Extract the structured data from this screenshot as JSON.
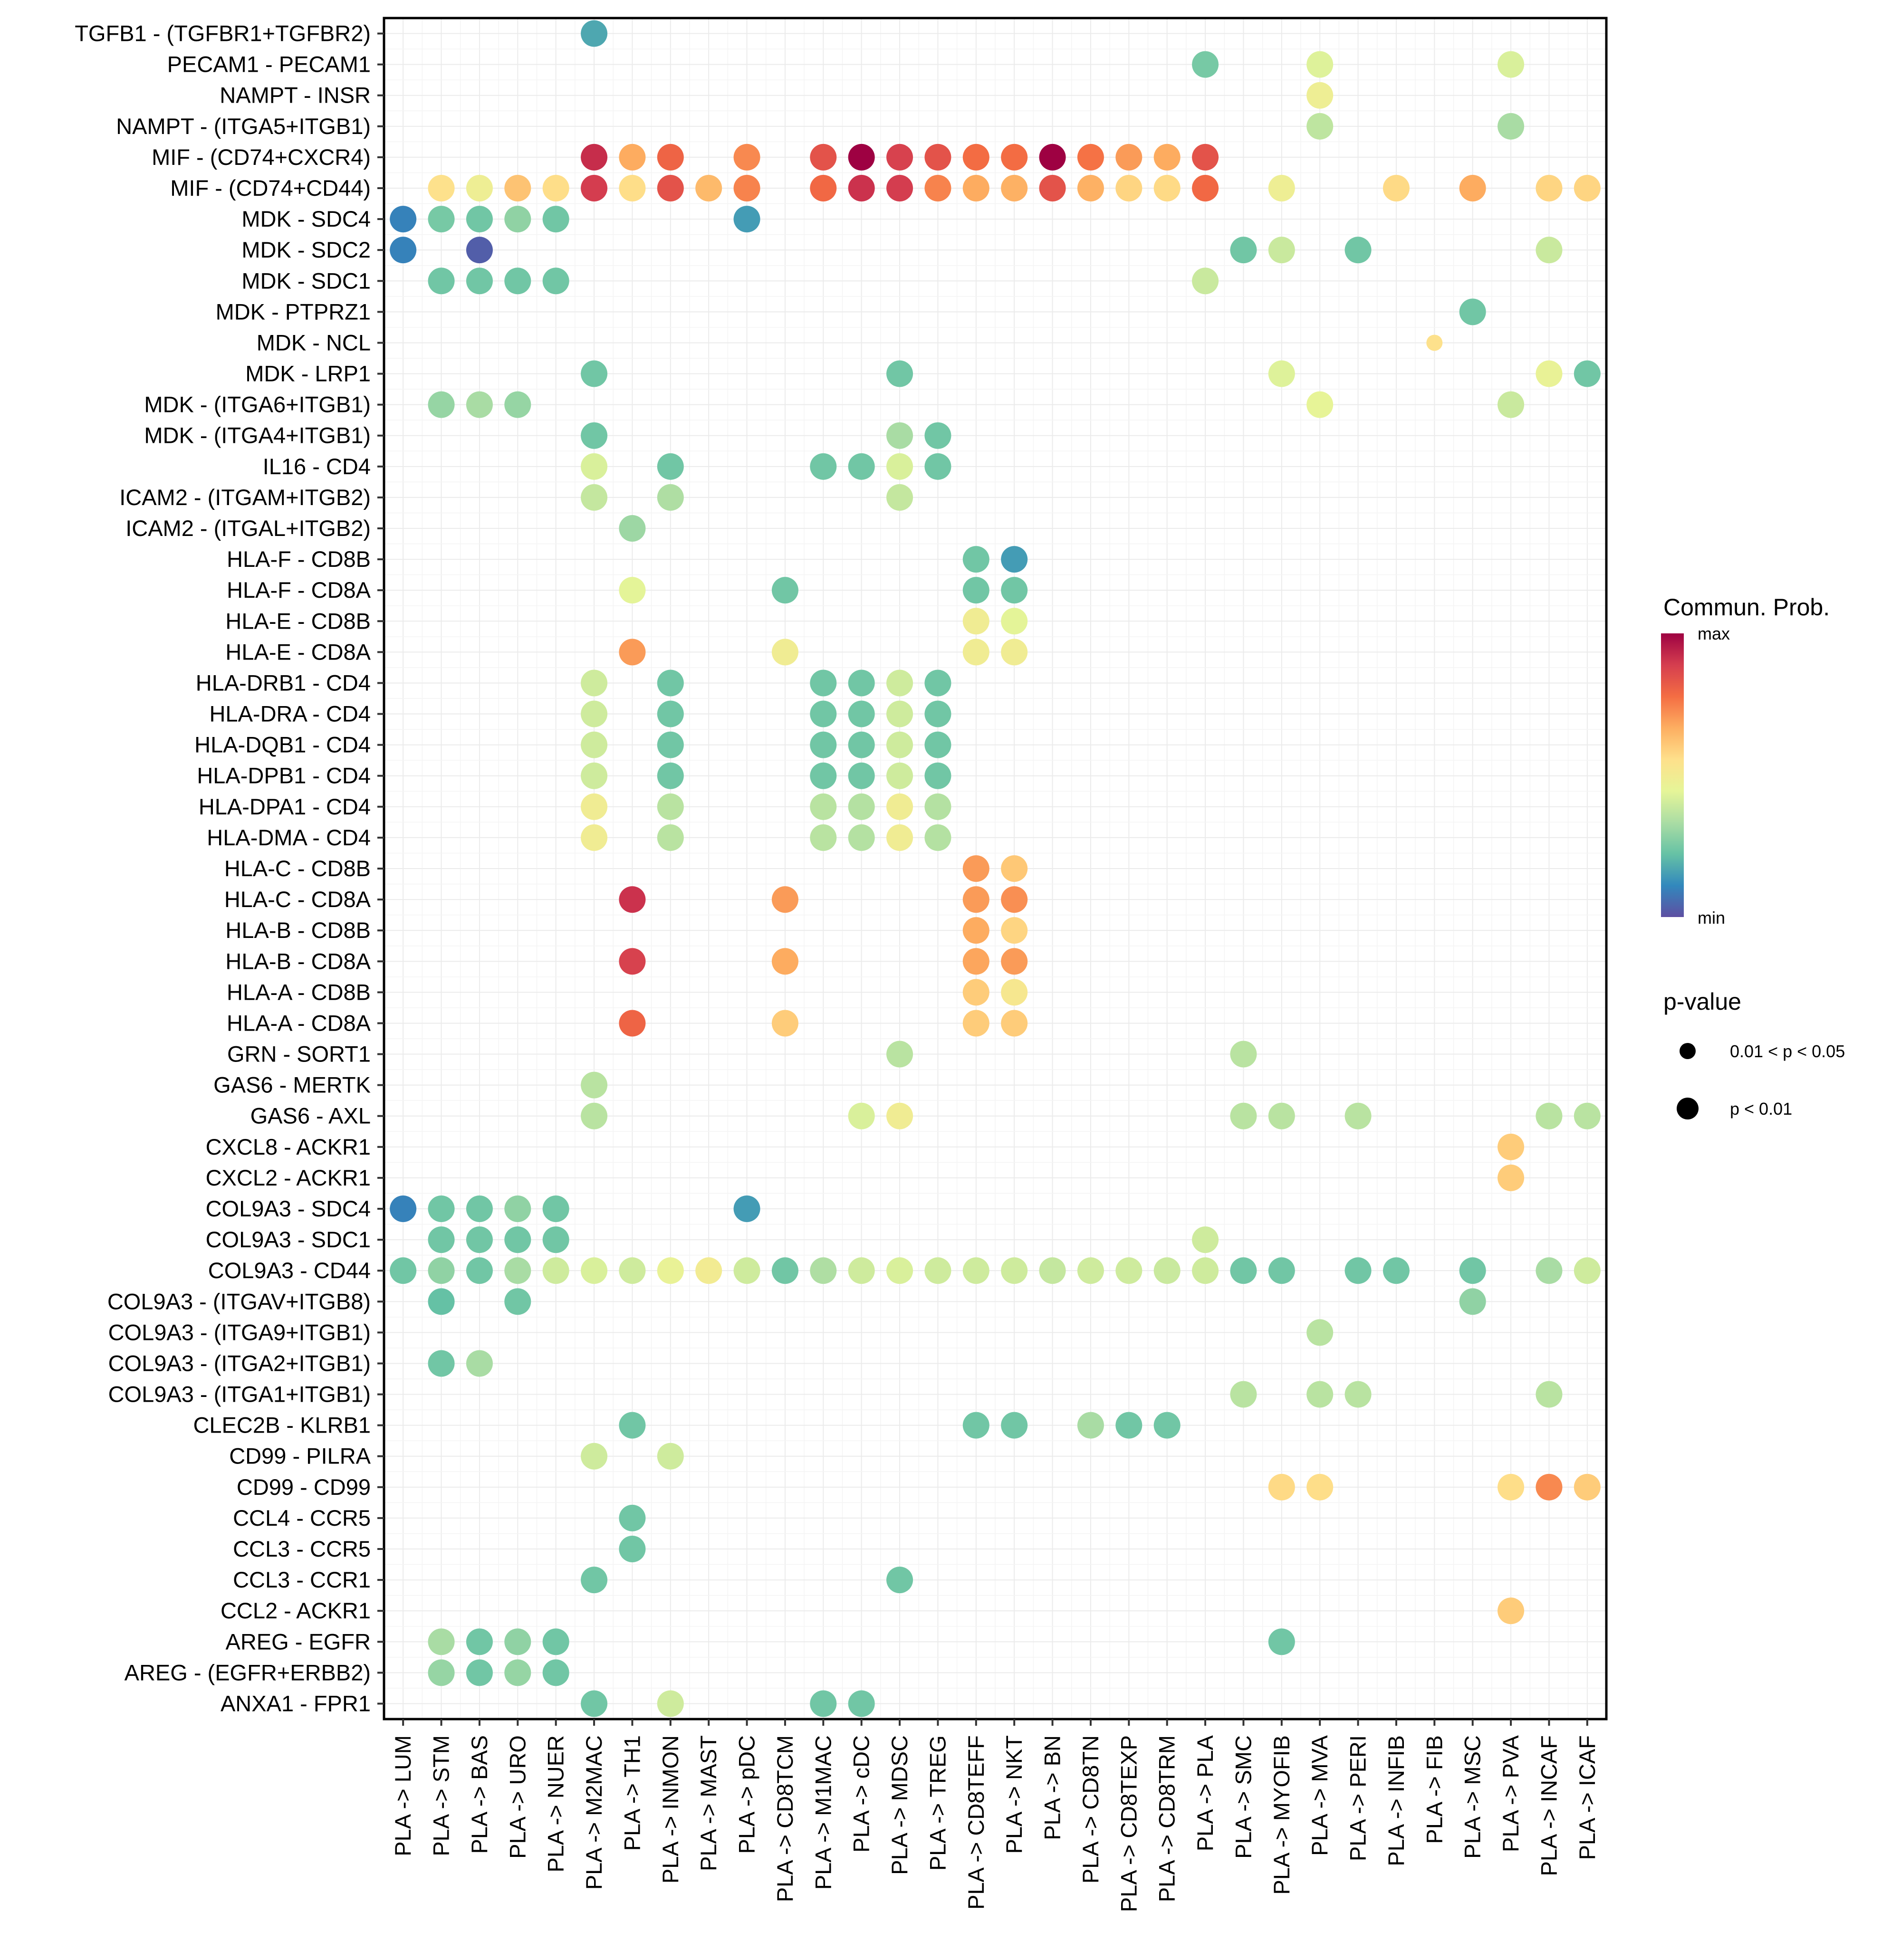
{
  "chart_data": {
    "type": "scatter",
    "subtype": "dotplot",
    "title": "",
    "xlabel": "",
    "ylabel": "",
    "grid": true,
    "legend_placement": "right",
    "x_categories": [
      "PLA -> LUM",
      "PLA -> STM",
      "PLA -> BAS",
      "PLA -> URO",
      "PLA -> NUER",
      "PLA -> M2MAC",
      "PLA -> TH1",
      "PLA -> INMON",
      "PLA -> MAST",
      "PLA -> pDC",
      "PLA -> CD8TCM",
      "PLA -> M1MAC",
      "PLA -> cDC",
      "PLA -> MDSC",
      "PLA -> TREG",
      "PLA -> CD8TEFF",
      "PLA -> NKT",
      "PLA -> BN",
      "PLA -> CD8TN",
      "PLA -> CD8TEXP",
      "PLA -> CD8TRM",
      "PLA -> PLA",
      "PLA -> SMC",
      "PLA -> MYOFIB",
      "PLA -> MVA",
      "PLA -> PERI",
      "PLA -> INFIB",
      "PLA -> FIB",
      "PLA -> MSC",
      "PLA -> PVA",
      "PLA -> INCAF",
      "PLA -> ICAF"
    ],
    "y_categories": [
      "TGFB1 - (TGFBR1+TGFBR2)",
      "PECAM1 - PECAM1",
      "NAMPT - INSR",
      "NAMPT - (ITGA5+ITGB1)",
      "MIF - (CD74+CXCR4)",
      "MIF - (CD74+CD44)",
      "MDK - SDC4",
      "MDK - SDC2",
      "MDK - SDC1",
      "MDK - PTPRZ1",
      "MDK - NCL",
      "MDK - LRP1",
      "MDK - (ITGA6+ITGB1)",
      "MDK - (ITGA4+ITGB1)",
      "IL16 - CD4",
      "ICAM2 - (ITGAM+ITGB2)",
      "ICAM2 - (ITGAL+ITGB2)",
      "HLA-F - CD8B",
      "HLA-F - CD8A",
      "HLA-E - CD8B",
      "HLA-E - CD8A",
      "HLA-DRB1 - CD4",
      "HLA-DRA - CD4",
      "HLA-DQB1 - CD4",
      "HLA-DPB1 - CD4",
      "HLA-DPA1 - CD4",
      "HLA-DMA - CD4",
      "HLA-C - CD8B",
      "HLA-C - CD8A",
      "HLA-B - CD8B",
      "HLA-B - CD8A",
      "HLA-A - CD8B",
      "HLA-A - CD8A",
      "GRN - SORT1",
      "GAS6 - MERTK",
      "GAS6 - AXL",
      "CXCL8 - ACKR1",
      "CXCL2 - ACKR1",
      "COL9A3 - SDC4",
      "COL9A3 - SDC1",
      "COL9A3 - CD44",
      "COL9A3 - (ITGAV+ITGB8)",
      "COL9A3 - (ITGA9+ITGB1)",
      "COL9A3 - (ITGA2+ITGB1)",
      "COL9A3 - (ITGA1+ITGB1)",
      "CLEC2B - KLRB1",
      "CD99 - PILRA",
      "CD99 - CD99",
      "CCL4 - CCR5",
      "CCL3 - CCR5",
      "CCL3 - CCR1",
      "CCL2 - ACKR1",
      "AREG - EGFR",
      "AREG - (EGFR+ERBB2)",
      "ANXA1 - FPR1"
    ],
    "point_fields": [
      "row",
      "col",
      "commun_prob_scaled",
      "pvalue_class"
    ],
    "pvalue_classes": [
      "0.01 < p < 0.05",
      "p < 0.01"
    ],
    "points": [
      [
        0,
        5,
        0.17,
        1
      ],
      [
        1,
        21,
        0.25,
        1
      ],
      [
        1,
        24,
        0.43,
        1
      ],
      [
        1,
        29,
        0.42,
        1
      ],
      [
        2,
        24,
        0.48,
        1
      ],
      [
        3,
        24,
        0.37,
        1
      ],
      [
        3,
        29,
        0.33,
        1
      ],
      [
        4,
        5,
        0.92,
        1
      ],
      [
        4,
        6,
        0.67,
        1
      ],
      [
        4,
        7,
        0.8,
        1
      ],
      [
        4,
        9,
        0.73,
        1
      ],
      [
        4,
        11,
        0.84,
        1
      ],
      [
        4,
        12,
        1.0,
        1
      ],
      [
        4,
        13,
        0.88,
        1
      ],
      [
        4,
        14,
        0.84,
        1
      ],
      [
        4,
        15,
        0.78,
        1
      ],
      [
        4,
        16,
        0.78,
        1
      ],
      [
        4,
        17,
        1.0,
        1
      ],
      [
        4,
        18,
        0.77,
        1
      ],
      [
        4,
        19,
        0.7,
        1
      ],
      [
        4,
        20,
        0.67,
        1
      ],
      [
        4,
        21,
        0.84,
        1
      ],
      [
        5,
        1,
        0.55,
        1
      ],
      [
        5,
        2,
        0.48,
        1
      ],
      [
        5,
        3,
        0.62,
        1
      ],
      [
        5,
        4,
        0.56,
        1
      ],
      [
        5,
        5,
        0.89,
        1
      ],
      [
        5,
        6,
        0.56,
        1
      ],
      [
        5,
        7,
        0.84,
        1
      ],
      [
        5,
        8,
        0.64,
        1
      ],
      [
        5,
        9,
        0.74,
        1
      ],
      [
        5,
        11,
        0.79,
        1
      ],
      [
        5,
        12,
        0.91,
        1
      ],
      [
        5,
        13,
        0.89,
        1
      ],
      [
        5,
        14,
        0.74,
        1
      ],
      [
        5,
        15,
        0.67,
        1
      ],
      [
        5,
        16,
        0.66,
        1
      ],
      [
        5,
        17,
        0.84,
        1
      ],
      [
        5,
        18,
        0.66,
        1
      ],
      [
        5,
        19,
        0.58,
        1
      ],
      [
        5,
        20,
        0.57,
        1
      ],
      [
        5,
        21,
        0.79,
        1
      ],
      [
        5,
        23,
        0.48,
        1
      ],
      [
        5,
        26,
        0.57,
        1
      ],
      [
        5,
        28,
        0.67,
        1
      ],
      [
        5,
        30,
        0.58,
        1
      ],
      [
        5,
        31,
        0.58,
        1
      ],
      [
        6,
        0,
        0.1,
        1
      ],
      [
        6,
        1,
        0.25,
        1
      ],
      [
        6,
        2,
        0.24,
        1
      ],
      [
        6,
        3,
        0.29,
        1
      ],
      [
        6,
        4,
        0.24,
        1
      ],
      [
        6,
        9,
        0.15,
        1
      ],
      [
        7,
        0,
        0.1,
        1
      ],
      [
        7,
        2,
        0.03,
        1
      ],
      [
        7,
        22,
        0.24,
        1
      ],
      [
        7,
        23,
        0.39,
        1
      ],
      [
        7,
        25,
        0.24,
        1
      ],
      [
        7,
        30,
        0.39,
        1
      ],
      [
        8,
        1,
        0.24,
        1
      ],
      [
        8,
        2,
        0.24,
        1
      ],
      [
        8,
        3,
        0.24,
        1
      ],
      [
        8,
        4,
        0.24,
        1
      ],
      [
        8,
        21,
        0.39,
        1
      ],
      [
        9,
        28,
        0.24,
        1
      ],
      [
        10,
        27,
        0.55,
        0
      ],
      [
        11,
        5,
        0.24,
        1
      ],
      [
        11,
        13,
        0.24,
        1
      ],
      [
        11,
        23,
        0.43,
        1
      ],
      [
        11,
        30,
        0.46,
        1
      ],
      [
        11,
        31,
        0.24,
        1
      ],
      [
        12,
        1,
        0.3,
        1
      ],
      [
        12,
        2,
        0.33,
        1
      ],
      [
        12,
        3,
        0.3,
        1
      ],
      [
        12,
        24,
        0.45,
        1
      ],
      [
        12,
        29,
        0.39,
        1
      ],
      [
        13,
        5,
        0.24,
        1
      ],
      [
        13,
        13,
        0.33,
        1
      ],
      [
        13,
        14,
        0.24,
        1
      ],
      [
        14,
        5,
        0.42,
        1
      ],
      [
        14,
        7,
        0.24,
        1
      ],
      [
        14,
        11,
        0.24,
        1
      ],
      [
        14,
        12,
        0.24,
        1
      ],
      [
        14,
        13,
        0.42,
        1
      ],
      [
        14,
        14,
        0.24,
        1
      ],
      [
        15,
        5,
        0.38,
        1
      ],
      [
        15,
        7,
        0.34,
        1
      ],
      [
        15,
        13,
        0.38,
        1
      ],
      [
        16,
        6,
        0.31,
        1
      ],
      [
        17,
        15,
        0.24,
        1
      ],
      [
        17,
        16,
        0.15,
        1
      ],
      [
        18,
        6,
        0.44,
        1
      ],
      [
        18,
        10,
        0.24,
        1
      ],
      [
        18,
        15,
        0.24,
        1
      ],
      [
        18,
        16,
        0.24,
        1
      ],
      [
        19,
        15,
        0.49,
        1
      ],
      [
        19,
        16,
        0.44,
        1
      ],
      [
        20,
        6,
        0.7,
        1
      ],
      [
        20,
        10,
        0.49,
        1
      ],
      [
        20,
        15,
        0.49,
        1
      ],
      [
        20,
        16,
        0.49,
        1
      ],
      [
        21,
        5,
        0.4,
        1
      ],
      [
        21,
        7,
        0.24,
        1
      ],
      [
        21,
        11,
        0.24,
        1
      ],
      [
        21,
        12,
        0.24,
        1
      ],
      [
        21,
        13,
        0.4,
        1
      ],
      [
        21,
        14,
        0.24,
        1
      ],
      [
        22,
        5,
        0.4,
        1
      ],
      [
        22,
        7,
        0.24,
        1
      ],
      [
        22,
        11,
        0.24,
        1
      ],
      [
        22,
        12,
        0.24,
        1
      ],
      [
        22,
        13,
        0.4,
        1
      ],
      [
        22,
        14,
        0.24,
        1
      ],
      [
        23,
        5,
        0.4,
        1
      ],
      [
        23,
        7,
        0.24,
        1
      ],
      [
        23,
        11,
        0.24,
        1
      ],
      [
        23,
        12,
        0.24,
        1
      ],
      [
        23,
        13,
        0.4,
        1
      ],
      [
        23,
        14,
        0.24,
        1
      ],
      [
        24,
        5,
        0.4,
        1
      ],
      [
        24,
        7,
        0.24,
        1
      ],
      [
        24,
        11,
        0.24,
        1
      ],
      [
        24,
        12,
        0.24,
        1
      ],
      [
        24,
        13,
        0.4,
        1
      ],
      [
        24,
        14,
        0.24,
        1
      ],
      [
        25,
        5,
        0.49,
        1
      ],
      [
        25,
        7,
        0.36,
        1
      ],
      [
        25,
        11,
        0.36,
        1
      ],
      [
        25,
        12,
        0.35,
        1
      ],
      [
        25,
        13,
        0.49,
        1
      ],
      [
        25,
        14,
        0.35,
        1
      ],
      [
        26,
        5,
        0.49,
        1
      ],
      [
        26,
        7,
        0.36,
        1
      ],
      [
        26,
        11,
        0.36,
        1
      ],
      [
        26,
        12,
        0.35,
        1
      ],
      [
        26,
        13,
        0.49,
        1
      ],
      [
        26,
        14,
        0.35,
        1
      ],
      [
        27,
        15,
        0.7,
        1
      ],
      [
        27,
        16,
        0.61,
        1
      ],
      [
        28,
        6,
        0.91,
        1
      ],
      [
        28,
        10,
        0.7,
        1
      ],
      [
        28,
        15,
        0.7,
        1
      ],
      [
        28,
        16,
        0.72,
        1
      ],
      [
        29,
        15,
        0.67,
        1
      ],
      [
        29,
        16,
        0.58,
        1
      ],
      [
        30,
        6,
        0.88,
        1
      ],
      [
        30,
        10,
        0.67,
        1
      ],
      [
        30,
        15,
        0.68,
        1
      ],
      [
        30,
        16,
        0.7,
        1
      ],
      [
        31,
        15,
        0.6,
        1
      ],
      [
        31,
        16,
        0.52,
        1
      ],
      [
        32,
        6,
        0.8,
        1
      ],
      [
        32,
        10,
        0.6,
        1
      ],
      [
        32,
        15,
        0.6,
        1
      ],
      [
        32,
        16,
        0.6,
        1
      ],
      [
        33,
        13,
        0.36,
        1
      ],
      [
        33,
        22,
        0.36,
        1
      ],
      [
        34,
        5,
        0.36,
        1
      ],
      [
        35,
        5,
        0.36,
        1
      ],
      [
        35,
        12,
        0.42,
        1
      ],
      [
        35,
        13,
        0.49,
        1
      ],
      [
        35,
        22,
        0.36,
        1
      ],
      [
        35,
        23,
        0.36,
        1
      ],
      [
        35,
        25,
        0.36,
        1
      ],
      [
        35,
        30,
        0.36,
        1
      ],
      [
        35,
        31,
        0.36,
        1
      ],
      [
        36,
        29,
        0.6,
        1
      ],
      [
        37,
        29,
        0.6,
        1
      ],
      [
        38,
        0,
        0.1,
        1
      ],
      [
        38,
        1,
        0.24,
        1
      ],
      [
        38,
        2,
        0.24,
        1
      ],
      [
        38,
        3,
        0.29,
        1
      ],
      [
        38,
        4,
        0.24,
        1
      ],
      [
        38,
        9,
        0.15,
        1
      ],
      [
        39,
        1,
        0.24,
        1
      ],
      [
        39,
        2,
        0.24,
        1
      ],
      [
        39,
        3,
        0.24,
        1
      ],
      [
        39,
        4,
        0.24,
        1
      ],
      [
        39,
        21,
        0.4,
        1
      ],
      [
        40,
        0,
        0.24,
        1
      ],
      [
        40,
        1,
        0.29,
        1
      ],
      [
        40,
        2,
        0.24,
        1
      ],
      [
        40,
        3,
        0.33,
        1
      ],
      [
        40,
        4,
        0.4,
        1
      ],
      [
        40,
        5,
        0.42,
        1
      ],
      [
        40,
        6,
        0.4,
        1
      ],
      [
        40,
        7,
        0.46,
        1
      ],
      [
        40,
        8,
        0.5,
        1
      ],
      [
        40,
        9,
        0.4,
        1
      ],
      [
        40,
        10,
        0.24,
        1
      ],
      [
        40,
        11,
        0.34,
        1
      ],
      [
        40,
        12,
        0.4,
        1
      ],
      [
        40,
        13,
        0.42,
        1
      ],
      [
        40,
        14,
        0.4,
        1
      ],
      [
        40,
        15,
        0.4,
        1
      ],
      [
        40,
        16,
        0.4,
        1
      ],
      [
        40,
        17,
        0.38,
        1
      ],
      [
        40,
        18,
        0.4,
        1
      ],
      [
        40,
        19,
        0.4,
        1
      ],
      [
        40,
        20,
        0.39,
        1
      ],
      [
        40,
        21,
        0.4,
        1
      ],
      [
        40,
        22,
        0.24,
        1
      ],
      [
        40,
        23,
        0.24,
        1
      ],
      [
        40,
        25,
        0.24,
        1
      ],
      [
        40,
        26,
        0.24,
        1
      ],
      [
        40,
        28,
        0.24,
        1
      ],
      [
        40,
        30,
        0.33,
        1
      ],
      [
        40,
        31,
        0.4,
        1
      ],
      [
        41,
        1,
        0.22,
        1
      ],
      [
        41,
        3,
        0.24,
        1
      ],
      [
        41,
        28,
        0.29,
        1
      ],
      [
        42,
        24,
        0.36,
        1
      ],
      [
        43,
        1,
        0.24,
        1
      ],
      [
        43,
        2,
        0.33,
        1
      ],
      [
        44,
        22,
        0.36,
        1
      ],
      [
        44,
        24,
        0.36,
        1
      ],
      [
        44,
        25,
        0.36,
        1
      ],
      [
        44,
        30,
        0.36,
        1
      ],
      [
        45,
        6,
        0.24,
        1
      ],
      [
        45,
        15,
        0.24,
        1
      ],
      [
        45,
        16,
        0.24,
        1
      ],
      [
        45,
        18,
        0.33,
        1
      ],
      [
        45,
        19,
        0.24,
        1
      ],
      [
        45,
        20,
        0.24,
        1
      ],
      [
        46,
        5,
        0.4,
        1
      ],
      [
        46,
        7,
        0.4,
        1
      ],
      [
        47,
        23,
        0.57,
        1
      ],
      [
        47,
        24,
        0.56,
        1
      ],
      [
        47,
        29,
        0.56,
        1
      ],
      [
        47,
        30,
        0.73,
        1
      ],
      [
        47,
        31,
        0.6,
        1
      ],
      [
        48,
        6,
        0.24,
        1
      ],
      [
        49,
        6,
        0.24,
        1
      ],
      [
        50,
        5,
        0.24,
        1
      ],
      [
        50,
        13,
        0.24,
        1
      ],
      [
        51,
        29,
        0.6,
        1
      ],
      [
        52,
        1,
        0.33,
        1
      ],
      [
        52,
        2,
        0.24,
        1
      ],
      [
        52,
        3,
        0.29,
        1
      ],
      [
        52,
        4,
        0.24,
        1
      ],
      [
        52,
        23,
        0.24,
        1
      ],
      [
        53,
        1,
        0.3,
        1
      ],
      [
        53,
        2,
        0.24,
        1
      ],
      [
        53,
        3,
        0.3,
        1
      ],
      [
        53,
        4,
        0.24,
        1
      ],
      [
        54,
        5,
        0.24,
        1
      ],
      [
        54,
        7,
        0.4,
        1
      ],
      [
        54,
        11,
        0.24,
        1
      ],
      [
        54,
        12,
        0.24,
        1
      ]
    ],
    "color_scale": {
      "title": "Commun. Prob.",
      "min_label": "min",
      "max_label": "max",
      "colors": [
        "#5e4fa2",
        "#3288bd",
        "#66c2a5",
        "#abdda4",
        "#e6f598",
        "#fee08b",
        "#fdae61",
        "#f46d43",
        "#d53e4f",
        "#9e0142"
      ]
    },
    "size_legend": {
      "title": "p-value",
      "items": [
        "0.01 < p < 0.05",
        "p < 0.01"
      ]
    }
  }
}
